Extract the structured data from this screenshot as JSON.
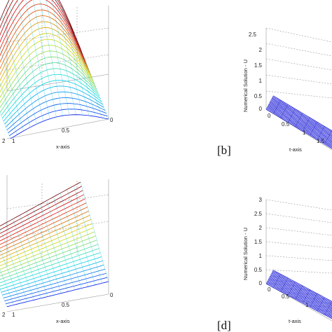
{
  "panels": {
    "a": {
      "xlabel": "x-axis",
      "x_ticks": [
        "1",
        "0.5",
        "0"
      ],
      "t_ticks": [
        "2"
      ]
    },
    "b": {
      "label": "[b]",
      "zlabel": "Numerical Solution - U",
      "xlabel": "t-axis",
      "z_ticks": [
        "2.5",
        "2",
        "1.5",
        "1",
        "0.5",
        "0"
      ],
      "t_ticks": [
        "0",
        "0.5",
        "1",
        "1.5"
      ]
    },
    "c": {
      "xlabel": "x-axis",
      "x_ticks": [
        "1",
        "0.5",
        "0"
      ],
      "t_ticks": [
        "2"
      ]
    },
    "d": {
      "label": "[d]",
      "zlabel": "Numerical Solution - U",
      "xlabel": "t-axis",
      "z_ticks": [
        "3",
        "2.5",
        "2",
        "1.5",
        "1",
        "0.5",
        "0"
      ],
      "t_ticks": [
        "0",
        "0.5",
        "1"
      ]
    }
  },
  "colors": {
    "surface_low": "#1e1e9a",
    "surface_high": "#c81e1e",
    "box": "#9a9a9a"
  }
}
